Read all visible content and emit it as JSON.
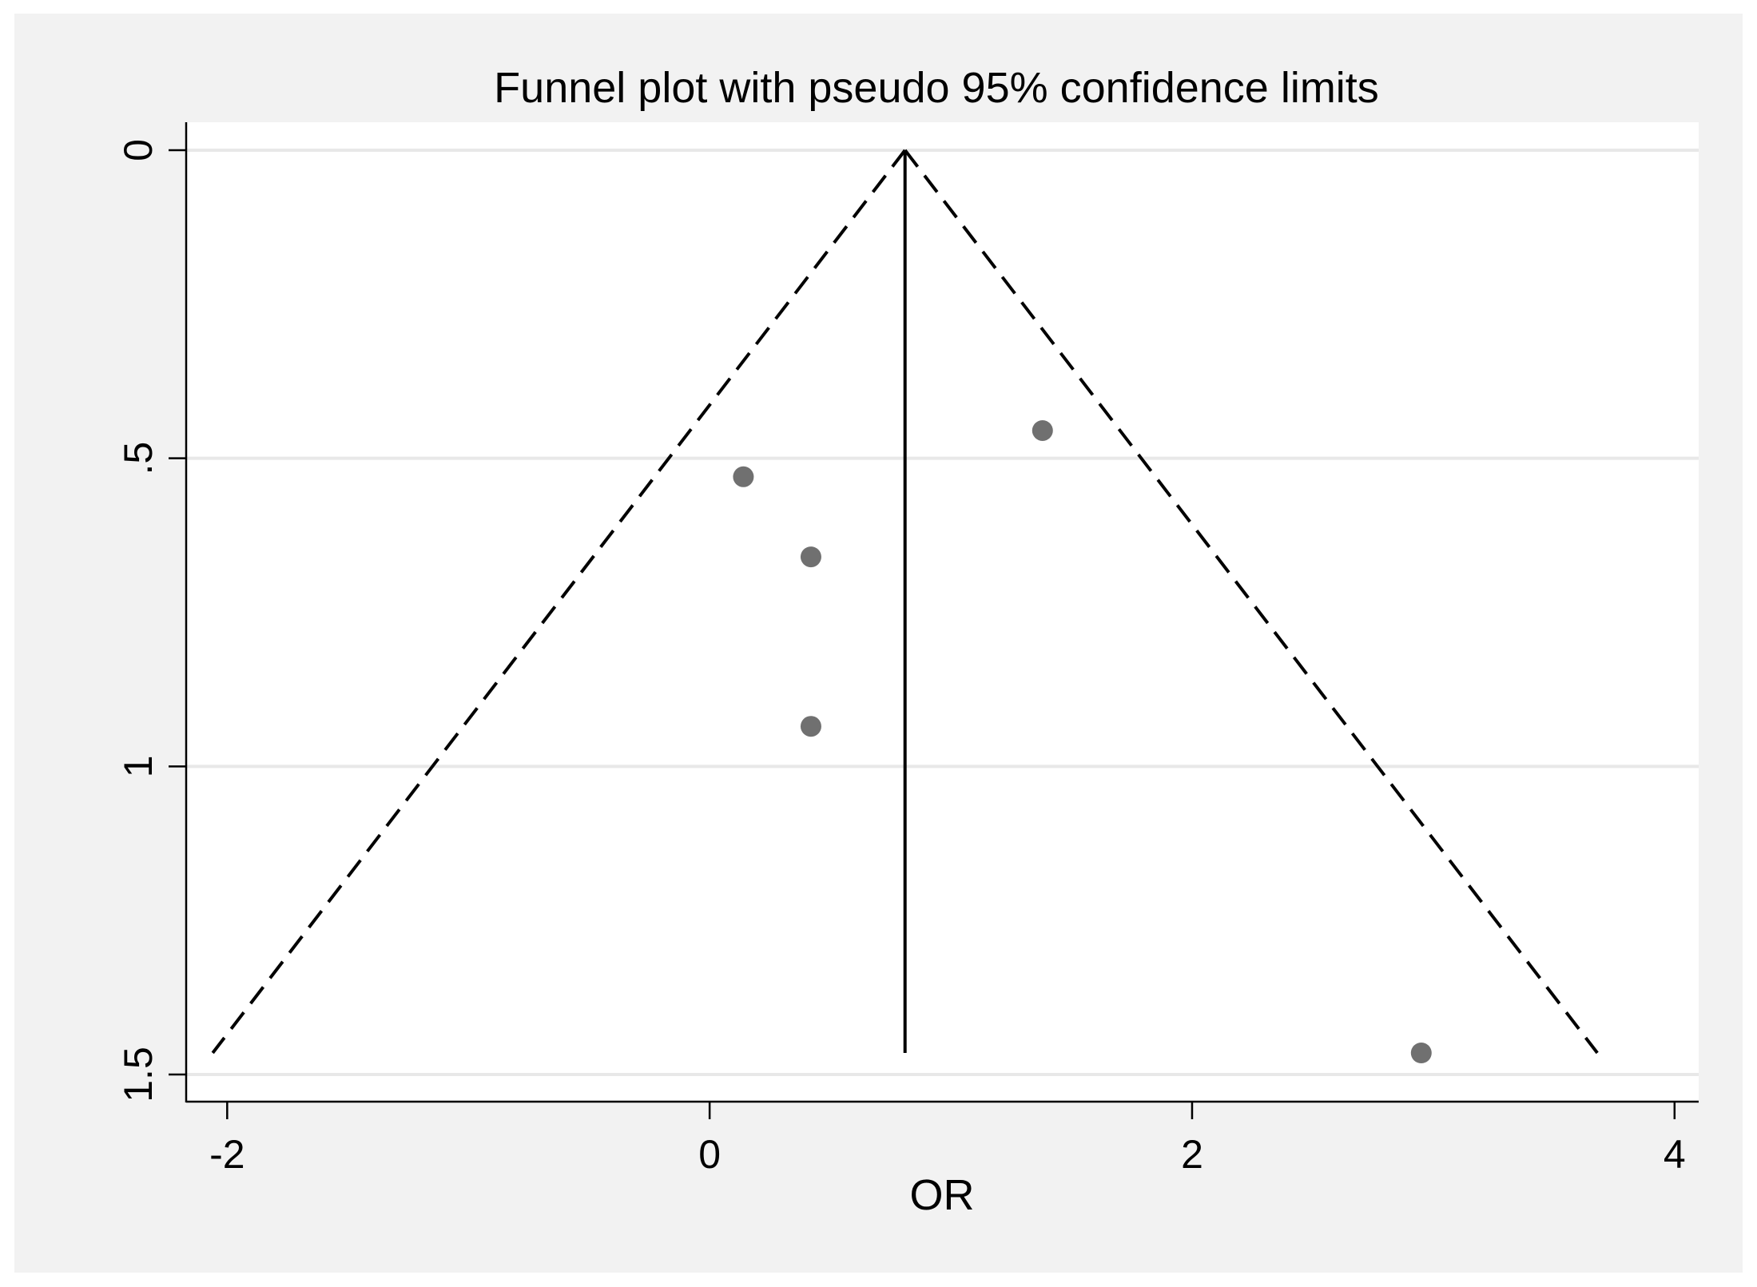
{
  "chart_data": {
    "type": "scatter",
    "title": "Funnel plot with pseudo 95% confidence limits",
    "xlabel": "OR",
    "ylabel": "",
    "xlim": [
      -2.17,
      4.1
    ],
    "ylim": [
      0,
      1.53
    ],
    "y_reversed": true,
    "grid": true,
    "x_ticks": [
      {
        "value": -2,
        "label": "-2"
      },
      {
        "value": 0,
        "label": "0"
      },
      {
        "value": 2,
        "label": "2"
      },
      {
        "value": 4,
        "label": "4"
      }
    ],
    "y_ticks": [
      {
        "value": 0,
        "label": "0"
      },
      {
        "value": 0.5,
        "label": ".5"
      },
      {
        "value": 1,
        "label": "1"
      },
      {
        "value": 1.5,
        "label": "1.5"
      }
    ],
    "points": [
      {
        "x": 1.38,
        "y": 0.455
      },
      {
        "x": 0.14,
        "y": 0.53
      },
      {
        "x": 0.42,
        "y": 0.66
      },
      {
        "x": 0.42,
        "y": 0.935
      },
      {
        "x": 2.95,
        "y": 1.465
      }
    ],
    "pooled_estimate": 0.81,
    "pooled_line_y": [
      0,
      1.465
    ],
    "ci_limits": {
      "apex": {
        "x": 0.81,
        "y": 0
      },
      "left_bottom": {
        "x": -2.06,
        "y": 1.465
      },
      "right_bottom": {
        "x": 3.68,
        "y": 1.465
      }
    },
    "colors": {
      "background": "#f2f2f2",
      "plot_area": "#ffffff",
      "grid": "#e8e8e8",
      "marker": "#707070",
      "line": "#000000"
    }
  }
}
